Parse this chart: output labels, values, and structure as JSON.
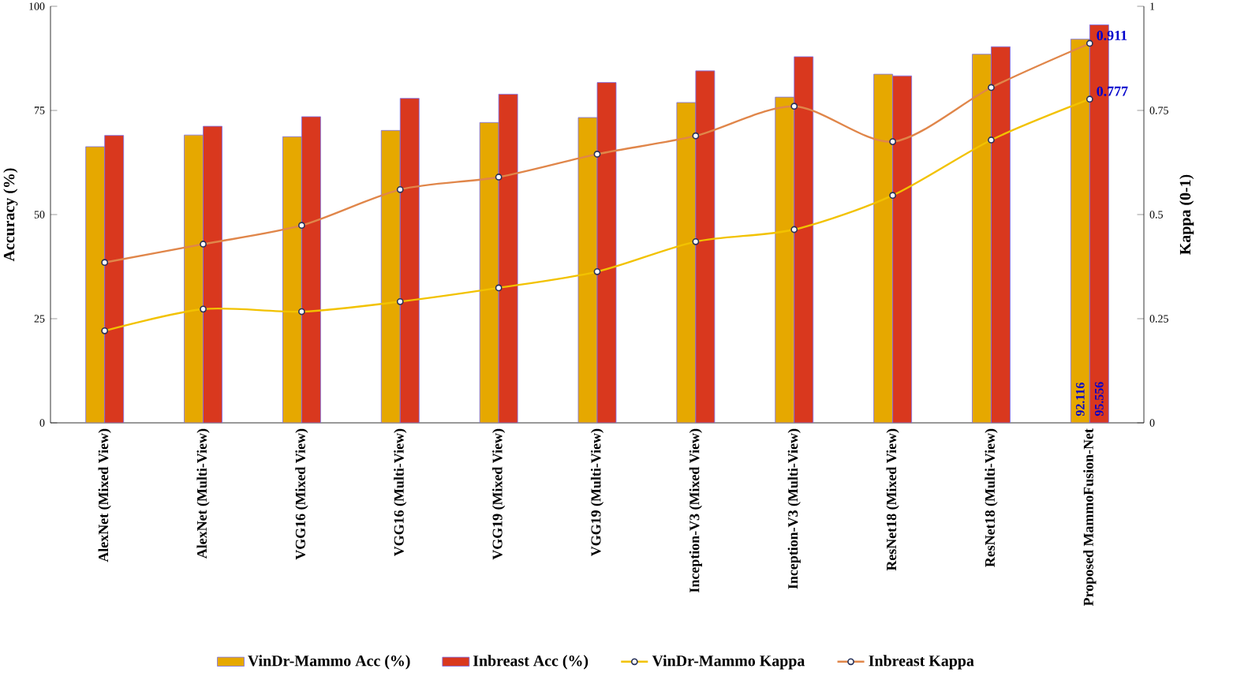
{
  "chart_data": {
    "type": "bar",
    "categories": [
      "AlexNet (Mixed View)",
      "AlexNet (Multi-View)",
      "VGG16 (Mixed View)",
      "VGG16 (Multi-View)",
      "VGG19 (Mixed View)",
      "VGG19 (Multi-View)",
      "Inception-V3 (Mixed View)",
      "Inception-V3 (Multi-View)",
      "ResNet18 (Mixed View)",
      "ResNet18 (Multi-View)",
      "Proposed MammoFusion-Net"
    ],
    "series": [
      {
        "name": "VinDr-Mammo Acc (%)",
        "color": "#e6a800",
        "values": [
          66.3,
          69.1,
          68.7,
          70.2,
          72.1,
          73.3,
          76.9,
          78.2,
          83.7,
          88.5,
          92.116
        ],
        "value_labels": [
          null,
          null,
          null,
          null,
          null,
          null,
          null,
          null,
          null,
          null,
          "92.116"
        ]
      },
      {
        "name": "Inbreast Acc (%)",
        "color": "#d9381e",
        "values": [
          69.0,
          71.2,
          73.5,
          77.9,
          78.9,
          81.7,
          84.5,
          87.9,
          83.3,
          90.3,
          95.556
        ],
        "value_labels": [
          null,
          null,
          null,
          null,
          null,
          null,
          null,
          null,
          null,
          null,
          "95.556"
        ]
      },
      {
        "name": "VinDr-Mammo Kappa",
        "type": "line",
        "axis": "y2",
        "color": "#f2c200",
        "values": [
          0.221,
          0.273,
          0.267,
          0.291,
          0.324,
          0.363,
          0.435,
          0.464,
          0.546,
          0.679,
          0.777
        ],
        "value_labels": [
          null,
          null,
          null,
          null,
          null,
          null,
          null,
          null,
          null,
          null,
          "0.777"
        ]
      },
      {
        "name": "Inbreast Kappa",
        "type": "line",
        "axis": "y2",
        "color": "#e0864a",
        "values": [
          0.385,
          0.429,
          0.474,
          0.56,
          0.59,
          0.645,
          0.689,
          0.76,
          0.675,
          0.805,
          0.911
        ],
        "value_labels": [
          null,
          null,
          null,
          null,
          null,
          null,
          null,
          null,
          null,
          null,
          "0.911"
        ]
      }
    ],
    "ylabel": "Accuracy (%)",
    "y2label": "Kappa (0-1)",
    "ylim": [
      0,
      100
    ],
    "yticks": [
      0,
      25,
      50,
      75,
      100
    ],
    "y2lim": [
      0,
      1
    ],
    "y2ticks": [
      0,
      0.25,
      0.5,
      0.75,
      1
    ],
    "legend": "bottom",
    "marker": "circle",
    "line_style": "solid",
    "grid": false
  }
}
